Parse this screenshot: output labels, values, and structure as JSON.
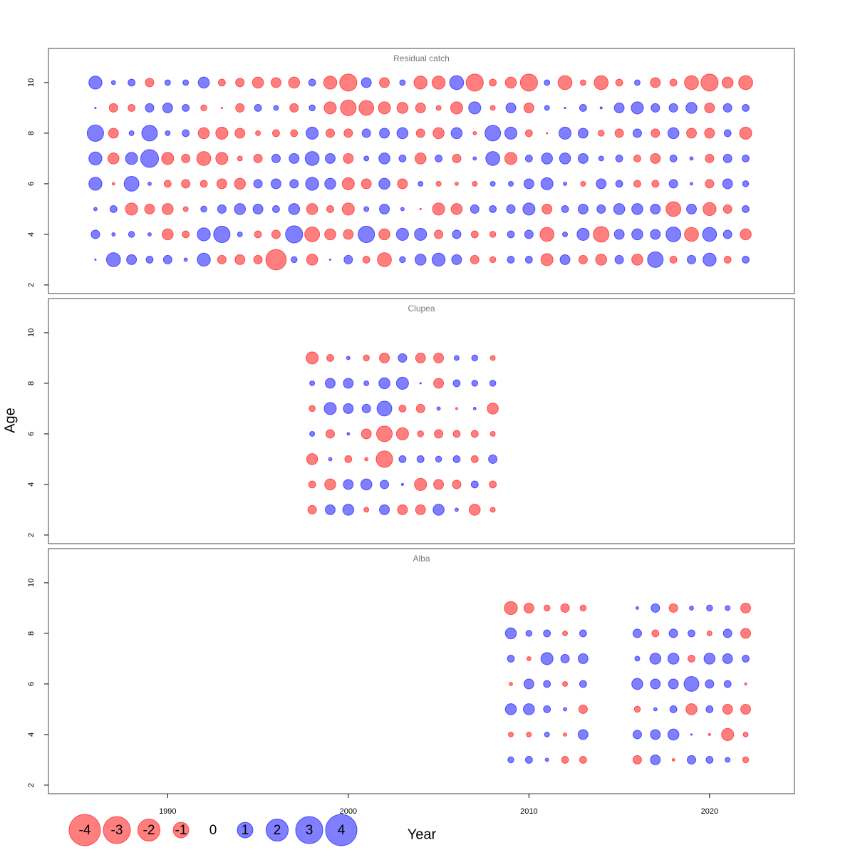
{
  "chart_data": {
    "type": "bubble",
    "xlabel": "Year",
    "ylabel": "Age",
    "xlim": [
      1983.4,
      2024.7
    ],
    "xticks": [
      1990,
      2000,
      2010,
      2020
    ],
    "ylim": [
      1.66,
      11.35
    ],
    "yticks": [
      2,
      4,
      6,
      8,
      10
    ],
    "colors": {
      "negative": "#ff0000",
      "positive": "#0000ff"
    },
    "legend": {
      "values": [
        -4,
        -3,
        -2,
        -1,
        0,
        1,
        2,
        3,
        4
      ]
    },
    "panels": [
      {
        "title": "Residual catch",
        "x": [
          1986,
          1987,
          1988,
          1989,
          1990,
          1991,
          1992,
          1993,
          1994,
          1995,
          1996,
          1997,
          1998,
          1999,
          2000,
          2001,
          2002,
          2003,
          2004,
          2005,
          2006,
          2007,
          2008,
          2009,
          2010,
          2011,
          2012,
          2013,
          2014,
          2015,
          2016,
          2017,
          2018,
          2019,
          2020,
          2021,
          2022
        ],
        "ages": [
          10,
          9,
          8,
          7,
          6,
          5,
          4,
          3
        ],
        "values": [
          [
            0.7,
            0.07,
            0.2,
            -0.3,
            0.13,
            0.13,
            0.5,
            -0.2,
            -0.3,
            -0.5,
            -0.4,
            -0.5,
            0.2,
            -0.7,
            -1.2,
            0.4,
            -0.4,
            0.13,
            -0.7,
            -0.7,
            0.8,
            -1.2,
            -0.2,
            -0.5,
            -1.2,
            0.13,
            -0.8,
            -0.13,
            -0.8,
            -0.2,
            0.13,
            -0.4,
            -0.2,
            -0.8,
            -1.2,
            -0.5,
            -0.8
          ],
          [
            0.01,
            -0.3,
            -0.2,
            0.3,
            0.4,
            0.2,
            -0.15,
            -0.01,
            -0.3,
            0.2,
            0.1,
            -0.3,
            0.15,
            -0.6,
            -1.0,
            -0.9,
            -0.6,
            -0.5,
            -0.4,
            -0.1,
            -0.6,
            0.6,
            -0.1,
            0.4,
            -0.4,
            0.1,
            0.01,
            0.2,
            0.02,
            0.4,
            0.6,
            0.3,
            0.3,
            0.5,
            -0.4,
            0.3,
            0.2
          ],
          [
            1.1,
            -0.4,
            0.1,
            1.0,
            0.1,
            0.2,
            -0.5,
            -0.6,
            -0.4,
            -0.1,
            -0.2,
            -0.2,
            0.6,
            -0.3,
            -0.3,
            0.3,
            0.4,
            0.5,
            -0.3,
            -0.5,
            0.5,
            -0.05,
            1.0,
            0.6,
            -0.2,
            -0.01,
            0.6,
            0.4,
            -0.15,
            -0.3,
            0.3,
            -0.3,
            0.5,
            -0.4,
            -0.4,
            0.2,
            -0.6
          ],
          [
            0.7,
            -0.5,
            0.6,
            1.3,
            -0.6,
            -0.3,
            -0.8,
            -0.6,
            -0.1,
            -0.3,
            0.3,
            0.4,
            0.8,
            0.4,
            -0.4,
            0.1,
            0.5,
            0.2,
            -0.5,
            0.2,
            -0.3,
            0.05,
            0.8,
            -0.6,
            0.2,
            0.5,
            0.5,
            0.4,
            0.1,
            0.2,
            -0.2,
            -0.4,
            0.2,
            0.05,
            -0.3,
            0.3,
            0.2
          ],
          [
            0.7,
            -0.03,
            0.9,
            0.05,
            -0.2,
            -0.3,
            -0.2,
            -0.4,
            -0.5,
            0.3,
            0.4,
            0.3,
            0.7,
            0.5,
            -0.6,
            -0.4,
            0.5,
            -0.4,
            0.1,
            -0.1,
            -0.05,
            -0.1,
            0.1,
            0.1,
            0.4,
            0.6,
            0.05,
            -0.1,
            0.4,
            0.2,
            -0.2,
            -0.2,
            0.3,
            0.03,
            -0.3,
            0.4,
            0.15
          ],
          [
            0.05,
            0.2,
            -0.6,
            -0.4,
            -0.5,
            -0.1,
            0.15,
            0.3,
            0.5,
            0.4,
            0.2,
            0.5,
            -0.5,
            -0.2,
            -0.6,
            0.1,
            0.4,
            0.05,
            -0.01,
            -0.6,
            -0.5,
            0.3,
            0.2,
            0.3,
            0.6,
            -0.4,
            0.2,
            0.4,
            0.3,
            0.5,
            0.5,
            0.4,
            -0.9,
            0.4,
            -0.7,
            -0.3,
            0.2
          ],
          [
            0.3,
            0.05,
            0.15,
            0.05,
            -0.5,
            -0.2,
            0.7,
            1.1,
            0.1,
            -0.2,
            -0.3,
            1.2,
            -0.9,
            -0.5,
            -0.4,
            1.1,
            -0.5,
            0.6,
            0.6,
            -0.3,
            0.3,
            -0.2,
            -0.15,
            0.2,
            0.3,
            -0.8,
            0.1,
            0.6,
            -1.0,
            0.4,
            0.5,
            0.4,
            0.9,
            -0.8,
            0.8,
            0.3,
            -0.5
          ],
          [
            0.01,
            0.8,
            0.4,
            0.2,
            0.3,
            0.05,
            0.7,
            -0.3,
            -0.4,
            -0.3,
            -1.7,
            0.15,
            -0.5,
            0.01,
            0.3,
            -0.2,
            -0.8,
            0.15,
            0.5,
            0.7,
            0.4,
            -0.3,
            -0.15,
            0.2,
            0.2,
            -0.6,
            0.4,
            -0.3,
            -0.5,
            0.3,
            -0.5,
            1.0,
            -0.2,
            0.3,
            0.7,
            -0.2,
            0.2
          ]
        ]
      },
      {
        "title": "Clupea",
        "x": [
          1998,
          1999,
          2000,
          2001,
          2002,
          2003,
          2004,
          2005,
          2006,
          2007,
          2008
        ],
        "ages": [
          9,
          8,
          7,
          6,
          5,
          4,
          3
        ],
        "values": [
          [
            -0.6,
            -0.2,
            0.05,
            -0.15,
            -0.4,
            0.3,
            -0.4,
            -0.4,
            0.1,
            0.15,
            -0.1
          ],
          [
            0.1,
            0.4,
            0.4,
            0.1,
            0.5,
            0.6,
            0.01,
            -0.4,
            0.2,
            0.15,
            0.15
          ],
          [
            -0.15,
            0.6,
            0.4,
            0.3,
            0.9,
            -0.2,
            -0.3,
            0.05,
            -0.02,
            0.03,
            -0.5
          ],
          [
            0.1,
            -0.3,
            0.03,
            -0.4,
            -1.0,
            -0.6,
            -0.15,
            -0.3,
            -0.2,
            -0.2,
            -0.1
          ],
          [
            -0.5,
            0.05,
            -0.2,
            -0.05,
            -1.1,
            0.2,
            0.2,
            0.15,
            0.2,
            -0.2,
            0.3
          ],
          [
            -0.2,
            -0.5,
            0.4,
            0.5,
            0.3,
            0.02,
            -0.6,
            -0.4,
            -0.3,
            0.2,
            -0.2
          ],
          [
            -0.3,
            0.4,
            0.5,
            -0.1,
            0.4,
            -0.4,
            -0.4,
            0.5,
            0.05,
            -0.5,
            -0.1
          ]
        ]
      },
      {
        "title": "Alba",
        "x": [
          2009,
          2010,
          2011,
          2012,
          2013,
          2016,
          2017,
          2018,
          2019,
          2020,
          2021,
          2022
        ],
        "ages": [
          9,
          8,
          7,
          6,
          5,
          4,
          3
        ],
        "values": [
          [
            -0.7,
            -0.4,
            -0.15,
            -0.3,
            -0.15,
            0.03,
            0.3,
            -0.3,
            0.07,
            0.15,
            0.1,
            -0.4
          ],
          [
            0.5,
            0.15,
            0.2,
            -0.1,
            0.2,
            0.3,
            -0.2,
            0.3,
            0.2,
            -0.1,
            0.3,
            -0.4
          ],
          [
            0.2,
            -0.07,
            0.6,
            0.3,
            0.4,
            0.1,
            0.5,
            0.5,
            -0.2,
            0.5,
            0.4,
            0.2
          ],
          [
            -0.05,
            0.4,
            0.2,
            -0.1,
            0.2,
            0.5,
            0.4,
            0.4,
            0.9,
            0.3,
            0.2,
            -0.02
          ],
          [
            0.5,
            0.5,
            0.2,
            0.05,
            -0.3,
            -0.15,
            0.05,
            0.2,
            -0.5,
            0.2,
            -0.4,
            -0.4
          ],
          [
            -0.1,
            -0.1,
            0.1,
            -0.05,
            0.4,
            0.3,
            0.4,
            0.5,
            0.01,
            -0.02,
            -0.6,
            -0.1
          ],
          [
            0.15,
            0.2,
            0.05,
            -0.2,
            -0.2,
            -0.3,
            0.4,
            -0.03,
            0.3,
            0.2,
            0.1,
            -0.15
          ]
        ]
      }
    ]
  }
}
